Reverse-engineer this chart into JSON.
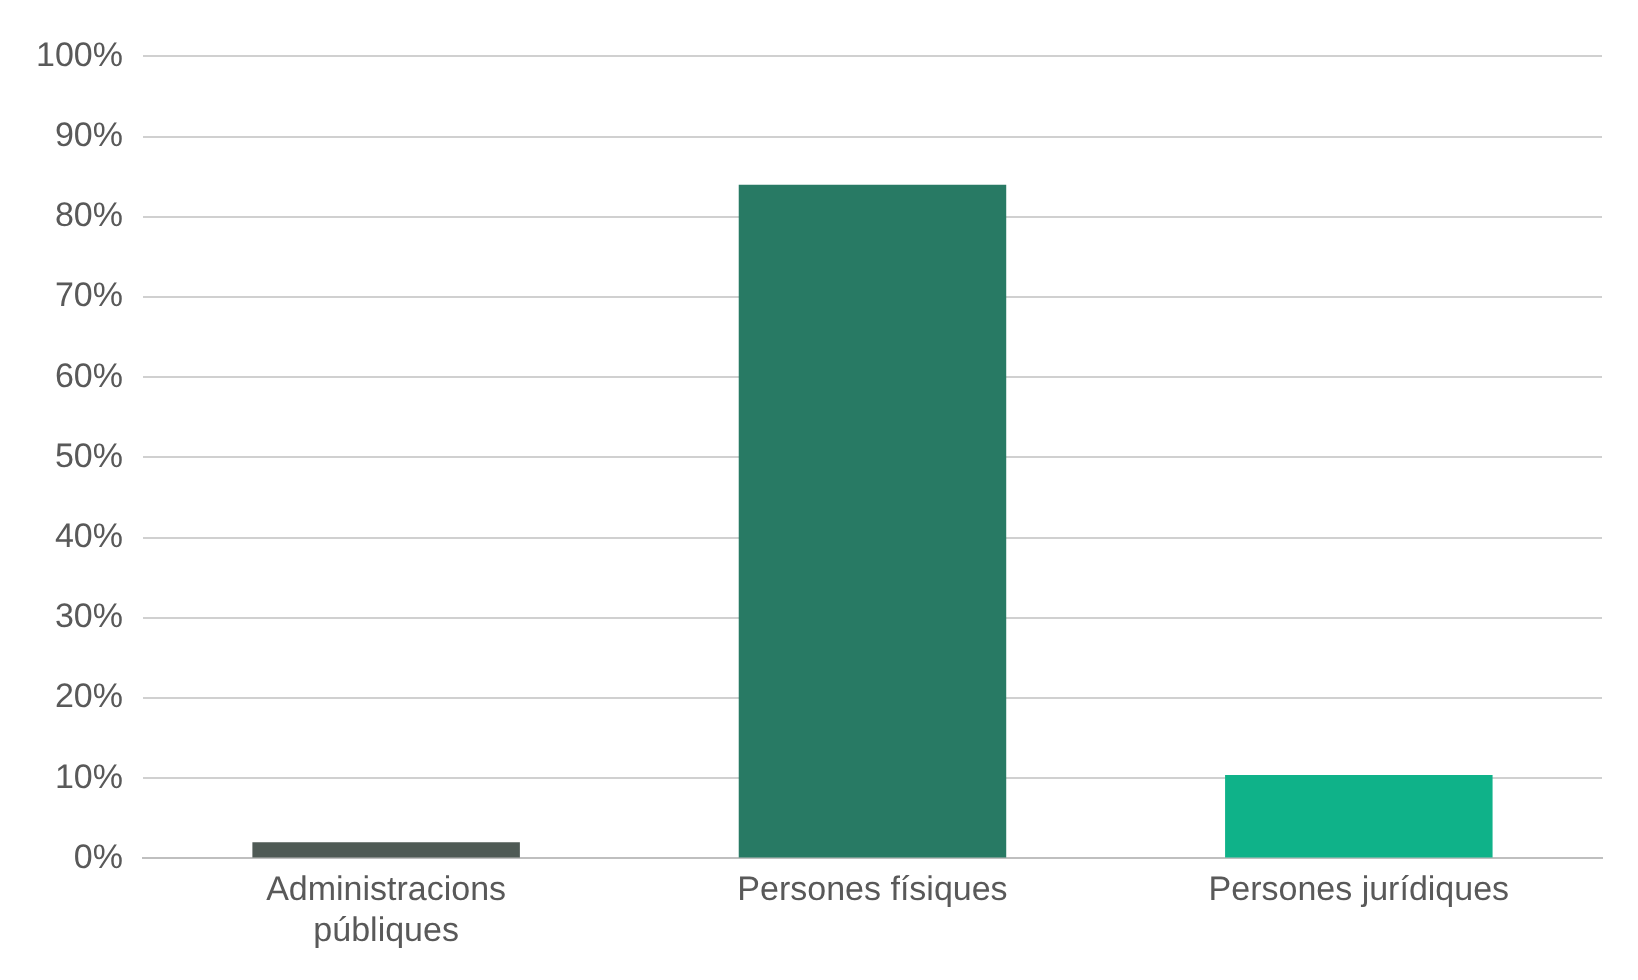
{
  "chart_data": {
    "type": "bar",
    "categories": [
      "Administracions públiques",
      "Persones físiques",
      "Persones jurídiques"
    ],
    "values": [
      2,
      84,
      10.4
    ],
    "colors": [
      "#4f5a55",
      "#287a64",
      "#0fb289"
    ],
    "ylim": [
      0,
      100
    ],
    "yticks": [
      {
        "value": 0,
        "label": "0%"
      },
      {
        "value": 10,
        "label": "10%"
      },
      {
        "value": 20,
        "label": "20%"
      },
      {
        "value": 30,
        "label": "30%"
      },
      {
        "value": 40,
        "label": "40%"
      },
      {
        "value": 50,
        "label": "50%"
      },
      {
        "value": 60,
        "label": "60%"
      },
      {
        "value": 70,
        "label": "70%"
      },
      {
        "value": 80,
        "label": "80%"
      },
      {
        "value": 90,
        "label": "90%"
      },
      {
        "value": 100,
        "label": "100%"
      }
    ],
    "grid": "y"
  }
}
